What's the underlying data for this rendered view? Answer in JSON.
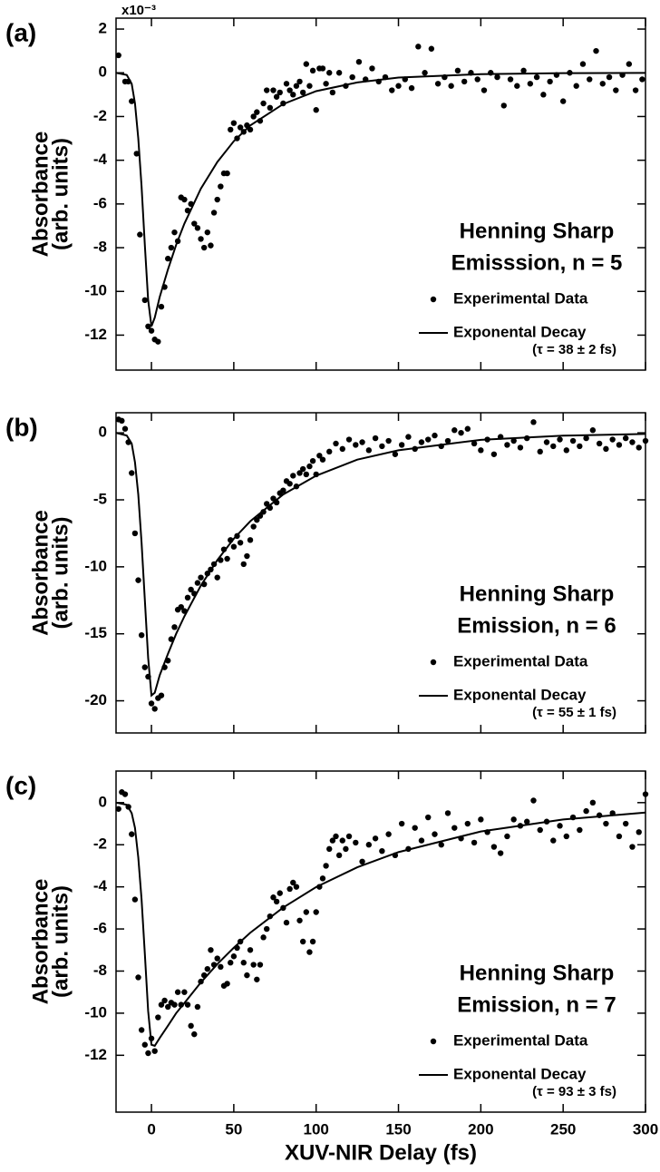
{
  "chart_data": [
    {
      "type": "scatter",
      "panel_label": "(a)",
      "y_multiplier": "x10⁻³",
      "ylabel": [
        "Absorbance",
        "(arb. units)"
      ],
      "title_lines": [
        "Henning Sharp",
        "Emisssion, n = 5"
      ],
      "annotation": "(τ = 38 ± 2 fs)",
      "xlim": [
        -21.5,
        300
      ],
      "xticks": [
        0,
        50,
        100,
        150,
        200,
        250,
        300
      ],
      "show_xtick_labels": false,
      "ylim": [
        -13.6,
        2.5
      ],
      "yticks": [
        2,
        0,
        -2,
        -4,
        -6,
        -8,
        -10,
        -12
      ],
      "series": [
        {
          "name": "Experimental Data",
          "mode": "markers",
          "color": "#000000",
          "x": [
            -20,
            -16,
            -14,
            -12,
            -9,
            -7,
            -4,
            -2,
            0,
            2,
            4,
            6,
            8,
            10,
            12,
            14,
            16,
            18,
            20,
            22,
            24,
            26,
            28,
            30,
            32,
            34,
            36,
            38,
            40,
            42,
            44,
            46,
            48,
            50,
            52,
            54,
            56,
            58,
            60,
            62,
            64,
            66,
            68,
            70,
            72,
            74,
            76,
            78,
            80,
            82,
            84,
            86,
            88,
            90,
            92,
            94,
            96,
            98,
            100,
            102,
            104,
            106,
            108,
            110,
            114,
            118,
            122,
            126,
            130,
            134,
            138,
            142,
            146,
            150,
            154,
            158,
            162,
            166,
            170,
            174,
            178,
            182,
            186,
            190,
            194,
            198,
            202,
            206,
            210,
            214,
            218,
            222,
            226,
            230,
            234,
            238,
            242,
            246,
            250,
            254,
            258,
            262,
            266,
            270,
            274,
            278,
            282,
            286,
            290,
            294,
            298
          ],
          "values": [
            0.8,
            -0.4,
            -0.4,
            -1.3,
            -3.7,
            -7.4,
            -10.4,
            -11.6,
            -11.8,
            -12.2,
            -12.3,
            -10.7,
            -9.8,
            -8.5,
            -8.0,
            -7.3,
            -7.7,
            -5.7,
            -5.8,
            -6.3,
            -6.0,
            -6.9,
            -7.1,
            -7.6,
            -8.0,
            -7.3,
            -7.9,
            -6.4,
            -5.8,
            -5.2,
            -4.6,
            -4.6,
            -2.6,
            -2.3,
            -3.0,
            -2.5,
            -2.7,
            -2.4,
            -2.6,
            -2.0,
            -1.8,
            -2.2,
            -1.4,
            -0.8,
            -1.6,
            -0.8,
            -1.1,
            -0.9,
            -1.4,
            -0.5,
            -0.8,
            -1.0,
            -0.6,
            -0.4,
            -0.9,
            0.4,
            -0.6,
            0.1,
            -1.7,
            0.2,
            0.2,
            -0.5,
            0.0,
            -0.9,
            0.0,
            -0.6,
            -0.2,
            0.5,
            -0.3,
            0.2,
            -0.4,
            -0.2,
            -0.8,
            -0.6,
            -0.3,
            -0.7,
            1.2,
            0.0,
            1.1,
            -0.5,
            -0.2,
            -0.6,
            0.1,
            -0.4,
            0.0,
            -0.3,
            -0.8,
            0.0,
            -0.2,
            -1.5,
            -0.3,
            -0.6,
            0.1,
            -0.5,
            -0.2,
            -1.0,
            -0.4,
            -0.1,
            -1.3,
            0.0,
            -0.6,
            0.4,
            -0.3,
            1.0,
            -0.5,
            -0.2,
            -0.8,
            -0.1,
            0.4,
            -0.8,
            -0.3
          ]
        },
        {
          "name": "Exponental Decay",
          "mode": "line",
          "color": "#000000",
          "x": [
            -21.5,
            -15,
            -12,
            -10,
            -8,
            -6,
            -4,
            -2,
            0,
            2,
            5,
            10,
            15,
            20,
            30,
            40,
            50,
            60,
            80,
            100,
            125,
            150,
            200,
            250,
            300
          ],
          "values": [
            0,
            -0.1,
            -0.5,
            -1.4,
            -3.0,
            -5.2,
            -7.9,
            -10.4,
            -11.6,
            -11.2,
            -10.26,
            -9.0,
            -7.87,
            -6.9,
            -5.3,
            -4.08,
            -3.13,
            -2.41,
            -1.43,
            -0.84,
            -0.44,
            -0.22,
            -0.06,
            -0.016,
            -0.004
          ]
        }
      ]
    },
    {
      "type": "scatter",
      "panel_label": "(b)",
      "ylabel": [
        "Absorbance",
        "(arb. units)"
      ],
      "title_lines": [
        "Henning Sharp",
        "Emission, n = 6"
      ],
      "annotation": "(τ = 55 ± 1 fs)",
      "xlim": [
        -21.5,
        300
      ],
      "xticks": [
        0,
        50,
        100,
        150,
        200,
        250,
        300
      ],
      "show_xtick_labels": false,
      "ylim": [
        -22.4,
        1.5
      ],
      "yticks": [
        0,
        -5,
        -10,
        -15,
        -20
      ],
      "series": [
        {
          "name": "Experimental Data",
          "mode": "markers",
          "color": "#000000",
          "x": [
            -20,
            -18,
            -16,
            -14,
            -12,
            -10,
            -8,
            -6,
            -4,
            -2,
            0,
            2,
            4,
            6,
            8,
            10,
            12,
            14,
            16,
            18,
            20,
            22,
            24,
            26,
            28,
            30,
            32,
            34,
            36,
            38,
            40,
            42,
            44,
            46,
            48,
            50,
            52,
            54,
            56,
            58,
            60,
            62,
            64,
            66,
            68,
            70,
            72,
            74,
            76,
            78,
            80,
            82,
            84,
            86,
            88,
            90,
            92,
            94,
            96,
            98,
            100,
            102,
            104,
            108,
            112,
            116,
            120,
            124,
            128,
            132,
            136,
            140,
            144,
            148,
            152,
            156,
            160,
            164,
            168,
            172,
            176,
            180,
            184,
            188,
            192,
            196,
            200,
            204,
            208,
            212,
            216,
            220,
            224,
            228,
            232,
            236,
            240,
            244,
            248,
            252,
            256,
            260,
            264,
            268,
            272,
            276,
            280,
            284,
            288,
            292,
            296,
            300
          ],
          "values": [
            1.0,
            0.9,
            0.3,
            -0.7,
            -3.0,
            -7.5,
            -11.0,
            -15.1,
            -17.5,
            -18.2,
            -20.2,
            -20.6,
            -19.8,
            -19.6,
            -17.5,
            -17.0,
            -15.4,
            -14.5,
            -13.2,
            -13.0,
            -13.3,
            -12.3,
            -11.7,
            -12.0,
            -11.2,
            -10.8,
            -11.3,
            -10.5,
            -10.2,
            -9.8,
            -10.8,
            -9.5,
            -8.7,
            -9.4,
            -8.0,
            -8.5,
            -7.7,
            -8.2,
            -9.8,
            -9.2,
            -8.0,
            -7.0,
            -6.5,
            -6.2,
            -5.9,
            -5.3,
            -5.6,
            -4.9,
            -5.2,
            -4.5,
            -4.3,
            -3.6,
            -3.8,
            -3.2,
            -4.0,
            -3.0,
            -2.7,
            -3.1,
            -2.5,
            -2.1,
            -3.1,
            -1.7,
            -2.0,
            -1.4,
            -0.8,
            -1.2,
            -0.5,
            -0.9,
            -0.7,
            -1.3,
            -0.4,
            -1.0,
            -0.6,
            -1.6,
            -0.9,
            -0.3,
            -1.2,
            -0.7,
            -0.5,
            -0.2,
            -1.0,
            -0.6,
            0.2,
            0.0,
            0.3,
            -0.8,
            -1.3,
            -0.5,
            -1.6,
            -0.3,
            -0.9,
            -0.6,
            -1.1,
            -0.4,
            0.8,
            -1.4,
            -0.7,
            -1.0,
            -0.5,
            -1.3,
            -0.6,
            -1.0,
            -0.4,
            0.2,
            -0.8,
            -1.2,
            -0.5,
            -0.9,
            -0.4,
            -0.7,
            -1.1,
            -0.6
          ]
        },
        {
          "name": "Exponental Decay",
          "mode": "line",
          "color": "#000000",
          "x": [
            -21.5,
            -15,
            -12,
            -10,
            -8,
            -6,
            -4,
            -2,
            0,
            2,
            5,
            10,
            15,
            20,
            30,
            40,
            50,
            60,
            80,
            100,
            125,
            150,
            200,
            250,
            300
          ],
          "values": [
            0,
            -0.2,
            -0.8,
            -2.2,
            -4.6,
            -8.2,
            -12.5,
            -16.8,
            -19.6,
            -19.4,
            -18.1,
            -16.5,
            -15.0,
            -13.7,
            -11.4,
            -9.5,
            -7.9,
            -6.6,
            -4.6,
            -3.2,
            -2.0,
            -1.3,
            -0.52,
            -0.21,
            -0.08
          ]
        }
      ]
    },
    {
      "type": "scatter",
      "panel_label": "(c)",
      "ylabel": [
        "Absorbance",
        "(arb. units)"
      ],
      "title_lines": [
        "Henning Sharp",
        "Emission, n = 7"
      ],
      "annotation": "(τ = 93 ± 3 fs)",
      "xlabel": "XUV-NIR Delay (fs)",
      "xlim": [
        -21.5,
        300
      ],
      "xticks": [
        0,
        50,
        100,
        150,
        200,
        250,
        300
      ],
      "show_xtick_labels": true,
      "ylim": [
        -14.7,
        1.5
      ],
      "yticks": [
        0,
        -2,
        -4,
        -6,
        -8,
        -10,
        -12
      ],
      "series": [
        {
          "name": "Experimental Data",
          "mode": "markers",
          "color": "#000000",
          "x": [
            -20,
            -18,
            -16,
            -14,
            -12,
            -10,
            -8,
            -6,
            -4,
            -2,
            0,
            2,
            4,
            6,
            8,
            10,
            12,
            14,
            16,
            18,
            20,
            22,
            24,
            26,
            28,
            30,
            32,
            34,
            36,
            38,
            40,
            42,
            44,
            46,
            48,
            50,
            52,
            54,
            56,
            58,
            60,
            62,
            64,
            66,
            68,
            70,
            72,
            74,
            76,
            78,
            80,
            82,
            84,
            86,
            88,
            90,
            92,
            94,
            96,
            98,
            100,
            102,
            104,
            106,
            108,
            110,
            112,
            114,
            116,
            118,
            120,
            124,
            128,
            132,
            136,
            140,
            144,
            148,
            152,
            156,
            160,
            164,
            168,
            172,
            176,
            180,
            184,
            188,
            192,
            196,
            200,
            204,
            208,
            212,
            216,
            220,
            224,
            228,
            232,
            236,
            240,
            244,
            248,
            252,
            256,
            260,
            264,
            268,
            272,
            276,
            280,
            284,
            288,
            292,
            296,
            300
          ],
          "values": [
            -0.3,
            0.5,
            0.4,
            -0.2,
            -1.5,
            -4.6,
            -8.3,
            -10.8,
            -11.5,
            -11.9,
            -11.2,
            -11.8,
            -10.2,
            -9.6,
            -9.4,
            -9.7,
            -9.5,
            -9.6,
            -9.0,
            -9.6,
            -9.0,
            -9.6,
            -10.6,
            -11.0,
            -9.7,
            -8.5,
            -8.2,
            -7.9,
            -7.0,
            -7.7,
            -7.4,
            -7.8,
            -8.7,
            -8.6,
            -7.6,
            -7.3,
            -6.9,
            -6.6,
            -7.6,
            -8.2,
            -7.0,
            -7.7,
            -8.4,
            -7.7,
            -6.4,
            -6.0,
            -5.4,
            -4.5,
            -4.7,
            -4.3,
            -5.0,
            -5.7,
            -4.1,
            -3.8,
            -4.0,
            -5.6,
            -6.6,
            -5.2,
            -7.1,
            -6.6,
            -5.2,
            -4.0,
            -3.6,
            -3.0,
            -2.2,
            -1.8,
            -1.6,
            -2.5,
            -1.8,
            -2.2,
            -1.6,
            -1.9,
            -2.8,
            -2.0,
            -1.7,
            -2.3,
            -1.5,
            -2.5,
            -1.0,
            -2.2,
            -1.2,
            -1.8,
            -0.7,
            -1.5,
            -2.0,
            -0.5,
            -1.2,
            -1.7,
            -1.0,
            -1.9,
            -0.8,
            -1.4,
            -2.1,
            -2.4,
            -1.6,
            -0.8,
            -1.1,
            -0.9,
            0.1,
            -1.3,
            -0.9,
            -1.8,
            -1.1,
            -1.6,
            -0.7,
            -1.3,
            -0.4,
            0.0,
            -0.6,
            -1.0,
            -0.5,
            -1.6,
            -1.0,
            -2.1,
            -1.4,
            0.4
          ]
        },
        {
          "name": "Exponental Decay",
          "mode": "line",
          "color": "#000000",
          "x": [
            -21.5,
            -15,
            -12,
            -10,
            -8,
            -6,
            -4,
            -2,
            0,
            2,
            5,
            10,
            15,
            20,
            30,
            40,
            50,
            60,
            80,
            100,
            125,
            150,
            200,
            250,
            300
          ],
          "values": [
            0,
            -0.1,
            -0.5,
            -1.2,
            -2.6,
            -4.6,
            -7.2,
            -9.9,
            -11.5,
            -11.55,
            -11.18,
            -10.6,
            -10.0,
            -9.52,
            -8.54,
            -7.67,
            -6.89,
            -6.18,
            -4.98,
            -4.01,
            -3.07,
            -2.35,
            -1.37,
            -0.8,
            -0.47
          ]
        }
      ]
    }
  ]
}
